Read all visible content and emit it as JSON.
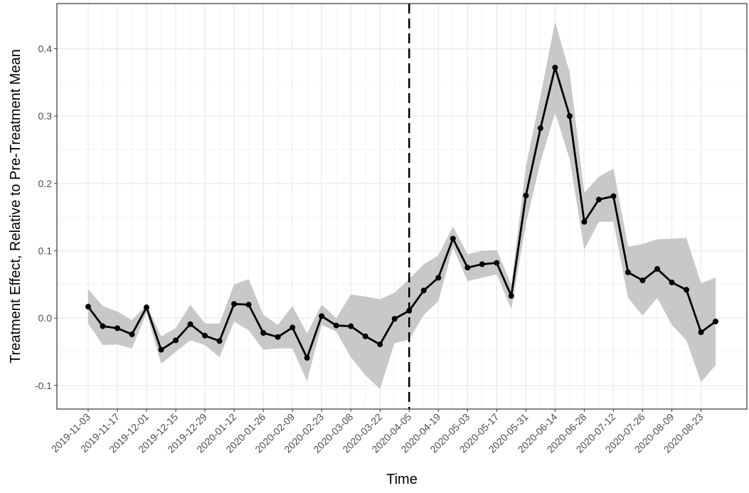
{
  "chart_data": {
    "type": "line",
    "x_label": "Time",
    "y_label": "Treatment Effect, Relative to Pre-Treatment Mean",
    "x": [
      "2019-11-03",
      "2019-11-10",
      "2019-11-17",
      "2019-11-24",
      "2019-12-01",
      "2019-12-08",
      "2019-12-15",
      "2019-12-22",
      "2019-12-29",
      "2020-01-05",
      "2020-01-12",
      "2020-01-19",
      "2020-01-26",
      "2020-02-02",
      "2020-02-09",
      "2020-02-16",
      "2020-02-23",
      "2020-03-01",
      "2020-03-08",
      "2020-03-15",
      "2020-03-22",
      "2020-03-29",
      "2020-04-05",
      "2020-04-12",
      "2020-04-19",
      "2020-04-26",
      "2020-05-03",
      "2020-05-10",
      "2020-05-17",
      "2020-05-24",
      "2020-05-31",
      "2020-06-07",
      "2020-06-14",
      "2020-06-21",
      "2020-06-28",
      "2020-07-05",
      "2020-07-12",
      "2020-07-19",
      "2020-07-26",
      "2020-08-02",
      "2020-08-09",
      "2020-08-16",
      "2020-08-23",
      "2020-08-30"
    ],
    "values": [
      0.017,
      -0.012,
      -0.015,
      -0.024,
      0.016,
      -0.047,
      -0.033,
      -0.009,
      -0.026,
      -0.034,
      0.021,
      0.02,
      -0.022,
      -0.028,
      -0.014,
      -0.059,
      0.003,
      -0.011,
      -0.012,
      -0.027,
      -0.039,
      -0.001,
      0.011,
      0.041,
      0.06,
      0.118,
      0.075,
      0.08,
      0.082,
      0.033,
      0.182,
      0.282,
      0.372,
      0.3,
      0.143,
      0.176,
      0.181,
      0.068,
      0.056,
      0.073,
      0.053,
      0.042,
      -0.021,
      -0.005
    ],
    "upper": [
      0.043,
      0.018,
      0.01,
      -0.003,
      0.02,
      -0.027,
      -0.015,
      0.02,
      -0.008,
      -0.008,
      0.05,
      0.058,
      0.005,
      -0.01,
      0.018,
      -0.023,
      0.02,
      0.0,
      0.035,
      0.032,
      0.028,
      0.038,
      0.058,
      0.08,
      0.093,
      0.136,
      0.095,
      0.1,
      0.101,
      0.05,
      0.225,
      0.33,
      0.44,
      0.365,
      0.186,
      0.21,
      0.222,
      0.106,
      0.11,
      0.117,
      0.118,
      0.119,
      0.052,
      0.06
    ],
    "lower": [
      -0.008,
      -0.04,
      -0.039,
      -0.045,
      0.008,
      -0.068,
      -0.05,
      -0.033,
      -0.04,
      -0.058,
      -0.005,
      -0.018,
      -0.047,
      -0.045,
      -0.045,
      -0.094,
      -0.01,
      -0.02,
      -0.058,
      -0.085,
      -0.105,
      -0.037,
      -0.032,
      0.005,
      0.025,
      0.105,
      0.055,
      0.06,
      0.065,
      0.013,
      0.14,
      0.232,
      0.305,
      0.236,
      0.102,
      0.143,
      0.143,
      0.03,
      0.004,
      0.03,
      -0.01,
      -0.033,
      -0.095,
      -0.07
    ],
    "color": "#000000",
    "band_color": "#bebebe",
    "vline": "2020-04-05",
    "xlim": [
      "2019-10-19",
      "2020-09-14"
    ],
    "xticks": [
      "2019-11-03",
      "2019-11-17",
      "2019-12-01",
      "2019-12-15",
      "2019-12-29",
      "2020-01-12",
      "2020-01-26",
      "2020-02-09",
      "2020-02-23",
      "2020-03-08",
      "2020-03-22",
      "2020-04-05",
      "2020-04-19",
      "2020-05-03",
      "2020-05-17",
      "2020-05-31",
      "2020-06-14",
      "2020-06-28",
      "2020-07-12",
      "2020-07-26",
      "2020-08-09",
      "2020-08-23"
    ],
    "ylim": [
      -0.135,
      0.467
    ],
    "yticks": [
      -0.1,
      {
        "value": 0,
        "label": "0.0"
      },
      0.1,
      0.2,
      0.3,
      0.4
    ],
    "grid": true
  }
}
